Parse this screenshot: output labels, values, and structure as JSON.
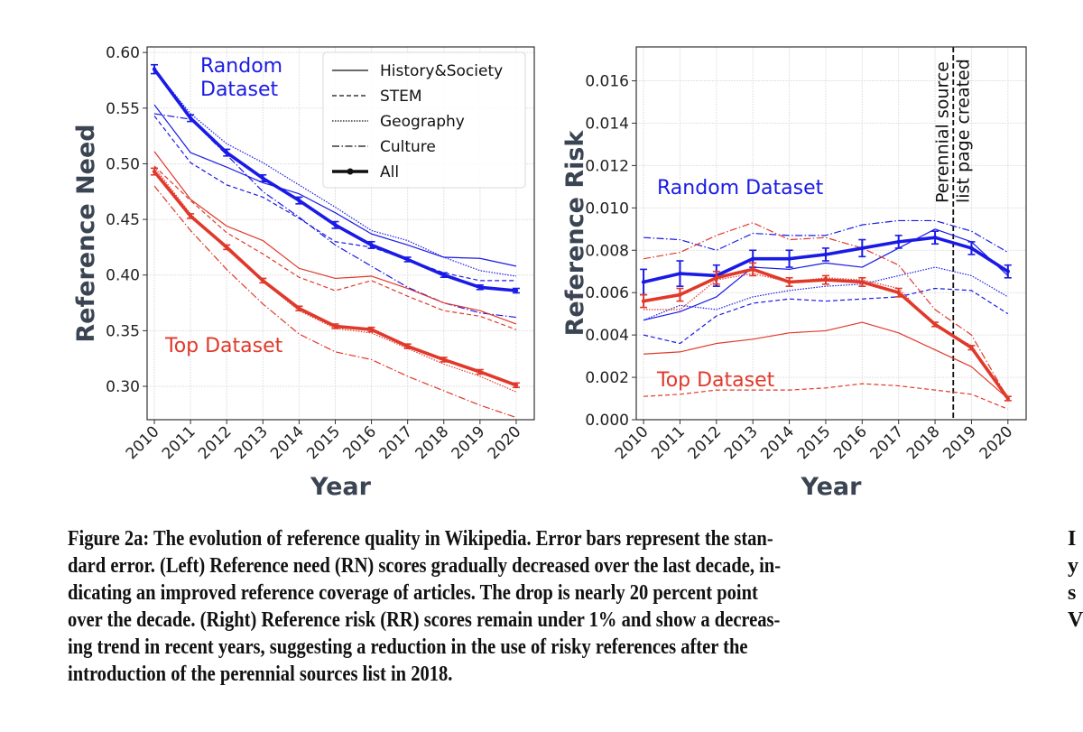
{
  "chart_data": [
    {
      "type": "line",
      "title": "",
      "xlabel": "Year",
      "ylabel": "Reference Need",
      "x": [
        2010,
        2011,
        2012,
        2013,
        2014,
        2015,
        2016,
        2017,
        2018,
        2019,
        2020
      ],
      "xticks": [
        "2010",
        "2011",
        "2012",
        "2013",
        "2014",
        "2015",
        "2016",
        "2017",
        "2018",
        "2019",
        "2020"
      ],
      "ylim": [
        0.27,
        0.605
      ],
      "yticks": [
        "0.30",
        "0.35",
        "0.40",
        "0.45",
        "0.50",
        "0.55",
        "0.60"
      ],
      "ytick_values": [
        0.3,
        0.35,
        0.4,
        0.45,
        0.5,
        0.55,
        0.6
      ],
      "grid": true,
      "legend": {
        "placement": "top-right",
        "entries": [
          {
            "label": "History&Society",
            "style": "solid"
          },
          {
            "label": "STEM",
            "style": "dashed"
          },
          {
            "label": "Geography",
            "style": "dotted"
          },
          {
            "label": "Culture",
            "style": "dashdot"
          },
          {
            "label": "All",
            "style": "thick-marker"
          }
        ]
      },
      "annotations": [
        {
          "text": "Random Dataset",
          "lines": [
            "Random",
            "Dataset"
          ],
          "color": "#1a1ae6"
        },
        {
          "text": "Top Dataset",
          "lines": [
            "Top Dataset"
          ],
          "color": "#e0392b"
        }
      ],
      "series": [
        {
          "name": "Random All",
          "group": "Random",
          "style": "thick",
          "color": "#1a1ae6",
          "values": [
            0.585,
            0.541,
            0.51,
            0.487,
            0.467,
            0.445,
            0.427,
            0.414,
            0.4,
            0.389,
            0.386
          ],
          "err": [
            0.004,
            0.003,
            0.003,
            0.003,
            0.003,
            0.003,
            0.003,
            0.002,
            0.002,
            0.002,
            0.002
          ]
        },
        {
          "name": "Random History&Society",
          "group": "Random",
          "style": "solid",
          "color": "#1a1ae6",
          "values": [
            0.553,
            0.51,
            0.497,
            0.483,
            0.473,
            0.456,
            0.437,
            0.427,
            0.416,
            0.415,
            0.408
          ]
        },
        {
          "name": "Random STEM",
          "group": "Random",
          "style": "dashed",
          "color": "#1a1ae6",
          "values": [
            0.543,
            0.501,
            0.481,
            0.47,
            0.451,
            0.43,
            0.425,
            0.414,
            0.402,
            0.395,
            0.395
          ]
        },
        {
          "name": "Random Geography",
          "group": "Random",
          "style": "dotted",
          "color": "#1a1ae6",
          "values": [
            0.585,
            0.545,
            0.518,
            0.501,
            0.481,
            0.461,
            0.44,
            0.431,
            0.416,
            0.404,
            0.399
          ]
        },
        {
          "name": "Random Culture",
          "group": "Random",
          "style": "dashdot",
          "color": "#1a1ae6",
          "values": [
            0.545,
            0.54,
            0.508,
            0.475,
            0.452,
            0.427,
            0.408,
            0.389,
            0.375,
            0.366,
            0.362
          ]
        },
        {
          "name": "Top All",
          "group": "Top",
          "style": "thick",
          "color": "#e0392b",
          "values": [
            0.493,
            0.453,
            0.425,
            0.395,
            0.37,
            0.354,
            0.351,
            0.336,
            0.324,
            0.313,
            0.301
          ],
          "err": [
            0.003,
            0.002,
            0.002,
            0.002,
            0.002,
            0.002,
            0.002,
            0.002,
            0.002,
            0.002,
            0.002
          ]
        },
        {
          "name": "Top History&Society",
          "group": "Top",
          "style": "solid",
          "color": "#e0392b",
          "values": [
            0.511,
            0.468,
            0.444,
            0.431,
            0.406,
            0.397,
            0.399,
            0.388,
            0.375,
            0.368,
            0.356
          ]
        },
        {
          "name": "Top STEM",
          "group": "Top",
          "style": "dashed",
          "color": "#e0392b",
          "values": [
            0.498,
            0.467,
            0.438,
            0.419,
            0.398,
            0.386,
            0.395,
            0.381,
            0.368,
            0.363,
            0.351
          ]
        },
        {
          "name": "Top Geography",
          "group": "Top",
          "style": "dotted",
          "color": "#e0392b",
          "values": [
            0.497,
            0.455,
            0.423,
            0.394,
            0.368,
            0.352,
            0.348,
            0.334,
            0.32,
            0.309,
            0.295
          ]
        },
        {
          "name": "Top Culture",
          "group": "Top",
          "style": "dashdot",
          "color": "#e0392b",
          "values": [
            0.48,
            0.44,
            0.405,
            0.374,
            0.347,
            0.331,
            0.324,
            0.309,
            0.296,
            0.283,
            0.272
          ]
        }
      ]
    },
    {
      "type": "line",
      "title": "",
      "xlabel": "Year",
      "ylabel": "Reference Risk",
      "x": [
        2010,
        2011,
        2012,
        2013,
        2014,
        2015,
        2016,
        2017,
        2018,
        2019,
        2020
      ],
      "xticks": [
        "2010",
        "2011",
        "2012",
        "2013",
        "2014",
        "2015",
        "2016",
        "2017",
        "2018",
        "2019",
        "2020"
      ],
      "ylim": [
        0.0,
        0.0176
      ],
      "yticks": [
        "0.000",
        "0.002",
        "0.004",
        "0.006",
        "0.008",
        "0.010",
        "0.012",
        "0.014",
        "0.016"
      ],
      "ytick_values": [
        0,
        0.002,
        0.004,
        0.006,
        0.008,
        0.01,
        0.012,
        0.014,
        0.016
      ],
      "grid": true,
      "vline": {
        "x": 2018.5,
        "style": "dashed",
        "color": "#111111",
        "label_lines": [
          "Perennial source",
          "list page created"
        ]
      },
      "annotations": [
        {
          "text": "Random Dataset",
          "lines": [
            "Random Dataset"
          ],
          "color": "#1a1ae6"
        },
        {
          "text": "Top Dataset",
          "lines": [
            "Top Dataset"
          ],
          "color": "#e0392b"
        }
      ],
      "series": [
        {
          "name": "Random All",
          "group": "Random",
          "style": "thick",
          "color": "#1a1ae6",
          "values": [
            0.0065,
            0.0069,
            0.0068,
            0.0076,
            0.0076,
            0.0078,
            0.0081,
            0.0084,
            0.0086,
            0.0081,
            0.007
          ],
          "err": [
            0.0006,
            0.0006,
            0.0005,
            0.0004,
            0.0004,
            0.0003,
            0.0004,
            0.0003,
            0.0003,
            0.0003,
            0.0003
          ]
        },
        {
          "name": "Random History&Society",
          "group": "Random",
          "style": "solid",
          "color": "#1a1ae6",
          "values": [
            0.0047,
            0.0051,
            0.0058,
            0.0072,
            0.0071,
            0.0074,
            0.0072,
            0.0081,
            0.009,
            0.0084,
            0.0068
          ]
        },
        {
          "name": "Random STEM",
          "group": "Random",
          "style": "dashed",
          "color": "#1a1ae6",
          "values": [
            0.004,
            0.0036,
            0.0049,
            0.0055,
            0.0057,
            0.0056,
            0.0057,
            0.0058,
            0.0062,
            0.0061,
            0.005
          ]
        },
        {
          "name": "Random Geography",
          "group": "Random",
          "style": "dotted",
          "color": "#1a1ae6",
          "values": [
            0.0047,
            0.0054,
            0.0052,
            0.0058,
            0.0061,
            0.0063,
            0.0064,
            0.0068,
            0.0072,
            0.0068,
            0.0058
          ]
        },
        {
          "name": "Random Culture",
          "group": "Random",
          "style": "dashdot",
          "color": "#1a1ae6",
          "values": [
            0.0086,
            0.0085,
            0.008,
            0.0088,
            0.0087,
            0.0087,
            0.0092,
            0.0094,
            0.0094,
            0.0089,
            0.0079
          ]
        },
        {
          "name": "Top All",
          "group": "Top",
          "style": "thick",
          "color": "#e0392b",
          "values": [
            0.0056,
            0.0059,
            0.0067,
            0.0071,
            0.0065,
            0.0066,
            0.0065,
            0.006,
            0.0045,
            0.0034,
            0.001
          ],
          "err": [
            0.0003,
            0.0003,
            0.0003,
            0.0003,
            0.0002,
            0.0002,
            0.0002,
            0.0002,
            0.0001,
            0.0001,
            0.0001
          ]
        },
        {
          "name": "Top History&Society",
          "group": "Top",
          "style": "solid",
          "color": "#e0392b",
          "values": [
            0.0031,
            0.0032,
            0.0036,
            0.0038,
            0.0041,
            0.0042,
            0.0046,
            0.0041,
            0.0033,
            0.0025,
            0.001
          ]
        },
        {
          "name": "Top STEM",
          "group": "Top",
          "style": "dashed",
          "color": "#e0392b",
          "values": [
            0.0011,
            0.0012,
            0.0014,
            0.0014,
            0.0014,
            0.0015,
            0.0017,
            0.0016,
            0.0014,
            0.0012,
            0.0005
          ]
        },
        {
          "name": "Top Geography",
          "group": "Top",
          "style": "dotted",
          "color": "#e0392b",
          "values": [
            0.0052,
            0.0052,
            0.0066,
            0.0069,
            0.0065,
            0.0067,
            0.0066,
            0.0062,
            0.0044,
            0.0035,
            0.001
          ]
        },
        {
          "name": "Top Culture",
          "group": "Top",
          "style": "dashdot",
          "color": "#e0392b",
          "values": [
            0.0076,
            0.0079,
            0.0087,
            0.0093,
            0.0085,
            0.0086,
            0.0081,
            0.0073,
            0.0052,
            0.004,
            0.001
          ]
        }
      ]
    }
  ],
  "caption": {
    "lines": [
      "Figure 2a: The evolution of reference quality in Wikipedia. Error bars represent the stan-",
      "dard error. (Left) Reference need (RN) scores gradually decreased over the last decade, in-",
      "dicating an improved reference coverage of articles. The drop is nearly 20 percent point",
      "over the decade. (Right) Reference risk (RR) scores remain under 1% and show a decreas-",
      "ing trend in recent years, suggesting a reduction in the use of risky references after the",
      "introduction of the perennial sources list in 2018."
    ],
    "next_column_fragments": [
      "I",
      "y",
      "s",
      "V"
    ]
  }
}
